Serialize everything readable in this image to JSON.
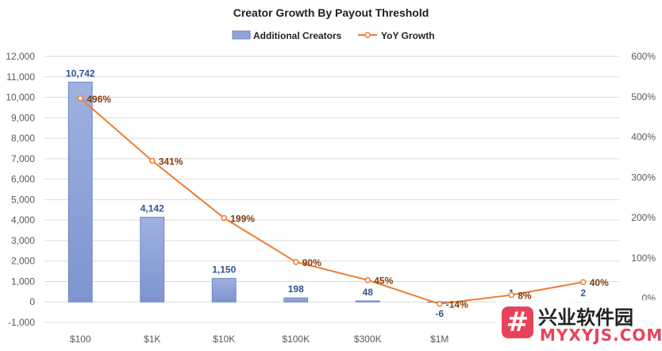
{
  "chart_data": {
    "type": "bar",
    "title": "Creator Growth By Payout Threshold",
    "categories": [
      "$100",
      "$1K",
      "$10K",
      "$100K",
      "$300K",
      "$1M",
      "",
      ""
    ],
    "series": [
      {
        "name": "Additional Creators",
        "kind": "bar",
        "axis": "left",
        "color": "#8ea4d8",
        "values": [
          10742,
          4142,
          1150,
          198,
          48,
          -6,
          1,
          2
        ],
        "labels": [
          "10,742",
          "4,142",
          "1,150",
          "198",
          "48",
          "-6",
          "1",
          "2"
        ]
      },
      {
        "name": "YoY Growth",
        "kind": "line",
        "axis": "right",
        "color": "#ed7d31",
        "values": [
          496,
          341,
          199,
          90,
          45,
          -14,
          8,
          40
        ],
        "labels": [
          "496%",
          "341%",
          "199%",
          "90%",
          "45%",
          "-14%",
          "8%",
          "40%"
        ]
      }
    ],
    "y_left": {
      "ylim": [
        -1000,
        12000
      ],
      "ticks": [
        -1000,
        0,
        1000,
        2000,
        3000,
        4000,
        5000,
        6000,
        7000,
        8000,
        9000,
        10000,
        11000,
        12000
      ],
      "tick_labels": [
        "-1,000",
        "0",
        "1,000",
        "2,000",
        "3,000",
        "4,000",
        "5,000",
        "6,000",
        "7,000",
        "8,000",
        "9,000",
        "10,000",
        "11,000",
        "12,000"
      ]
    },
    "y_right": {
      "ylim": [
        -60,
        600
      ],
      "ticks": [
        0,
        100,
        200,
        300,
        400,
        500,
        600
      ],
      "tick_labels": [
        "0%",
        "100%",
        "200%",
        "300%",
        "400%",
        "500%",
        "600%"
      ]
    },
    "grid": true,
    "legend": "top-center"
  },
  "watermark": {
    "icon_glyph": "#",
    "text": "兴业软件园",
    "sub": "MYXYJS.COM"
  }
}
